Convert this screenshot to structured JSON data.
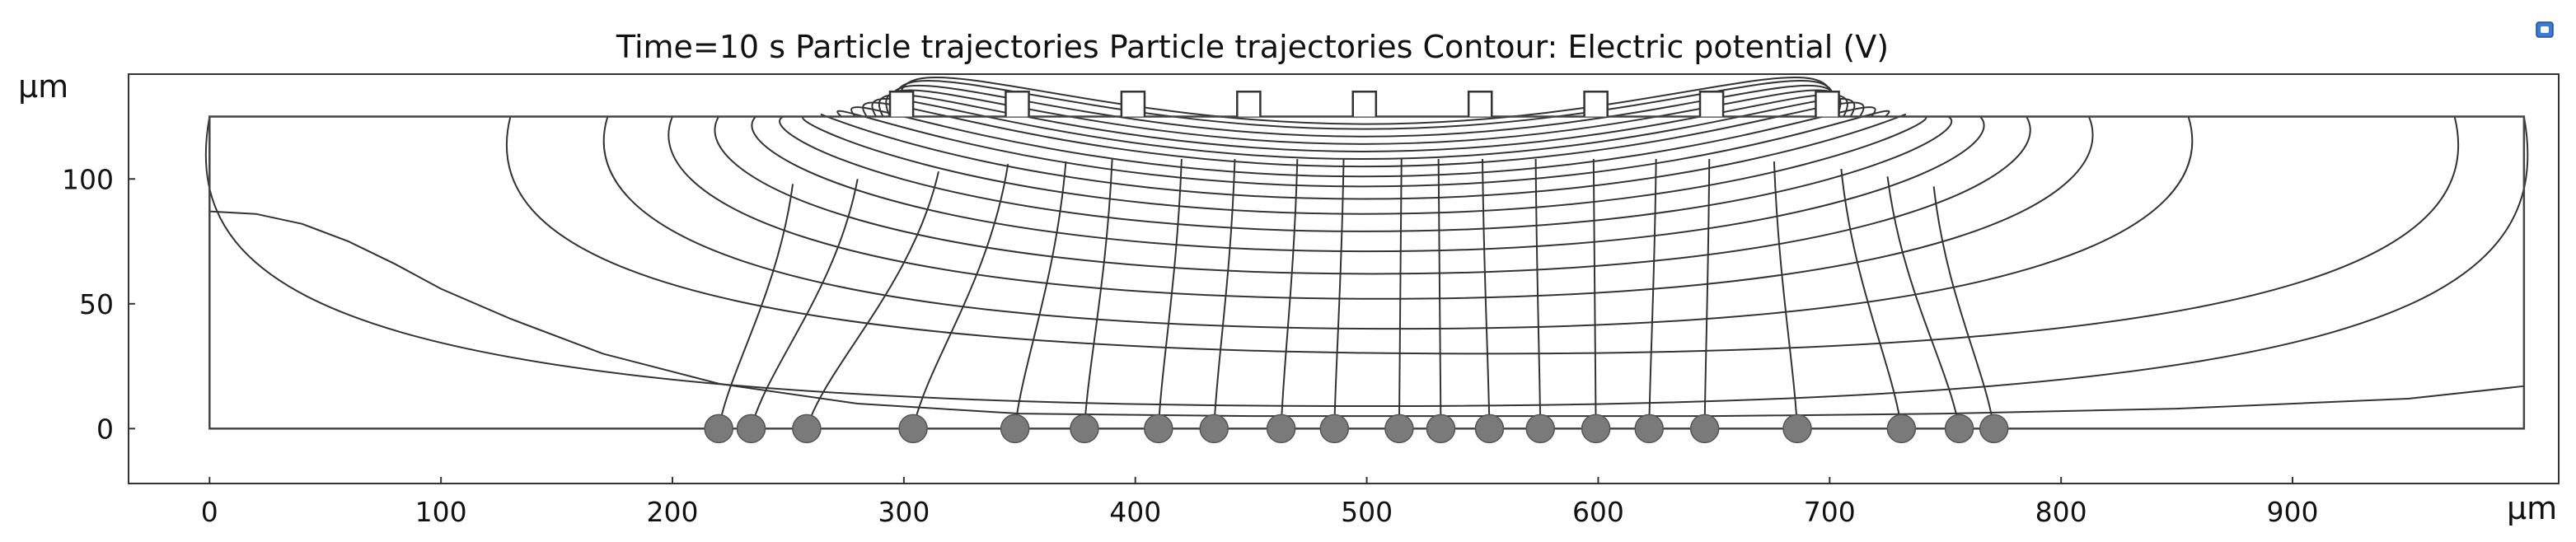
{
  "chart_data": {
    "type": "line",
    "title": "Time=10 s  Particle trajectories Particle trajectories  Contour: Electric potential (V)",
    "xlabel": "μm",
    "ylabel": "μm",
    "xlim": [
      -35,
      1015
    ],
    "ylim": [
      -22,
      142
    ],
    "x_ticks": [
      0,
      100,
      200,
      300,
      400,
      500,
      600,
      700,
      800,
      900
    ],
    "y_ticks": [
      0,
      50,
      100
    ],
    "grid": false,
    "domain_box": {
      "x": [
        0,
        1000
      ],
      "y": [
        0,
        125
      ]
    },
    "electrodes": {
      "centers": [
        299,
        349,
        399,
        449,
        499,
        549,
        599,
        649,
        699
      ],
      "width": 10,
      "height": 10,
      "base_y": 125
    },
    "particles_y0": 0,
    "particles": [
      {
        "x_end": 220,
        "x_start": 252,
        "y_start": 98
      },
      {
        "x_end": 234,
        "x_start": 280,
        "y_start": 100
      },
      {
        "x_end": 258,
        "x_start": 315,
        "y_start": 103
      },
      {
        "x_end": 304,
        "x_start": 345,
        "y_start": 106
      },
      {
        "x_end": 348,
        "x_start": 370,
        "y_start": 107
      },
      {
        "x_end": 378,
        "x_start": 390,
        "y_start": 108
      },
      {
        "x_end": 410,
        "x_start": 420,
        "y_start": 108
      },
      {
        "x_end": 434,
        "x_start": 443,
        "y_start": 108
      },
      {
        "x_end": 463,
        "x_start": 470,
        "y_start": 108
      },
      {
        "x_end": 486,
        "x_start": 490,
        "y_start": 108
      },
      {
        "x_end": 514,
        "x_start": 515,
        "y_start": 108
      },
      {
        "x_end": 532,
        "x_start": 531,
        "y_start": 108
      },
      {
        "x_end": 553,
        "x_start": 550,
        "y_start": 108
      },
      {
        "x_end": 575,
        "x_start": 573,
        "y_start": 108
      },
      {
        "x_end": 599,
        "x_start": 598,
        "y_start": 108
      },
      {
        "x_end": 622,
        "x_start": 625,
        "y_start": 108
      },
      {
        "x_end": 646,
        "x_start": 648,
        "y_start": 108
      },
      {
        "x_end": 686,
        "x_start": 676,
        "y_start": 107
      },
      {
        "x_end": 731,
        "x_start": 705,
        "y_start": 104
      },
      {
        "x_end": 756,
        "x_start": 725,
        "y_start": 101
      },
      {
        "x_end": 771,
        "x_start": 745,
        "y_start": 97
      }
    ],
    "contours_outer": [
      {
        "left": 0,
        "right": 1000,
        "crest": 9
      },
      {
        "left": 130,
        "right": 970,
        "crest": 30
      },
      {
        "left": 172,
        "right": 855,
        "crest": 40
      },
      {
        "left": 200,
        "right": 812,
        "crest": 52
      },
      {
        "left": 220,
        "right": 785,
        "crest": 62
      },
      {
        "left": 236,
        "right": 765,
        "crest": 71
      },
      {
        "left": 248,
        "right": 751,
        "crest": 79
      },
      {
        "left": 258,
        "right": 740,
        "crest": 86
      },
      {
        "left": 266,
        "right": 731,
        "crest": 92
      },
      {
        "left": 273,
        "right": 724,
        "crest": 97
      },
      {
        "left": 279,
        "right": 718,
        "crest": 101
      },
      {
        "left": 284,
        "right": 713,
        "crest": 105
      },
      {
        "left": 288,
        "right": 709,
        "crest": 108
      },
      {
        "left": 291,
        "right": 706,
        "crest": 111
      },
      {
        "left": 294,
        "right": 703,
        "crest": 114
      },
      {
        "left": 296,
        "right": 701,
        "crest": 117
      },
      {
        "left": 298,
        "right": 700,
        "crest": 120
      },
      {
        "left": 300,
        "right": 699,
        "crest": 122
      }
    ],
    "boundary_contour": [
      [
        0,
        87
      ],
      [
        20,
        86
      ],
      [
        40,
        82
      ],
      [
        60,
        75
      ],
      [
        80,
        66
      ],
      [
        100,
        56
      ],
      [
        130,
        44
      ],
      [
        170,
        30
      ],
      [
        220,
        18
      ],
      [
        280,
        10
      ],
      [
        350,
        6
      ],
      [
        450,
        5
      ],
      [
        550,
        5
      ],
      [
        650,
        5
      ],
      [
        750,
        6
      ],
      [
        850,
        8
      ],
      [
        950,
        12
      ],
      [
        1000,
        17
      ]
    ]
  }
}
